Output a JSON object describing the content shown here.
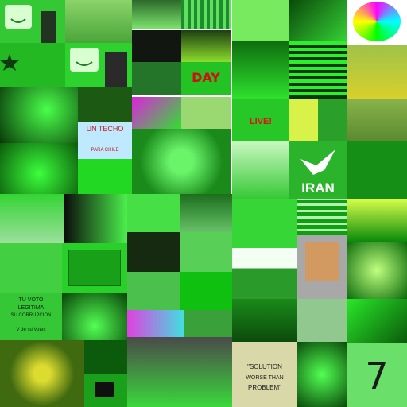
{
  "mosaic": {
    "tiles": [
      {
        "id": "t01",
        "color": "#2ecc40"
      },
      {
        "id": "t02",
        "color": "#3fd23a"
      },
      {
        "id": "t03",
        "color": "#1e7a12"
      },
      {
        "id": "t04",
        "color": "#27a81a"
      },
      {
        "id": "t05",
        "color": "#6ef25b"
      },
      {
        "id": "t06",
        "color": "#0b5a0b"
      },
      {
        "id": "t07",
        "color": "#a36cf7"
      },
      {
        "id": "t08",
        "color": "#1b8f2b"
      },
      {
        "id": "t09",
        "color": "#22c325"
      },
      {
        "id": "t10",
        "color": "#111a11"
      },
      {
        "id": "t11",
        "color": "#2b8d1a"
      },
      {
        "id": "t12",
        "color": "#0e5b0e"
      },
      {
        "id": "t13",
        "color": "#17c21a"
      },
      {
        "id": "t14",
        "color": "#05e005"
      },
      {
        "id": "t15",
        "color": "#7ab82b"
      },
      {
        "id": "t16",
        "color": "#08420d"
      },
      {
        "id": "t17",
        "color": "#187d17"
      },
      {
        "id": "t18",
        "color": "#52d65a"
      },
      {
        "id": "t19",
        "color": "#36b21d"
      },
      {
        "id": "t20",
        "color": "#2bdc2b"
      },
      {
        "id": "t21",
        "color": "#e53a3a"
      },
      {
        "id": "t22",
        "color": "#8ae83e"
      },
      {
        "id": "t23",
        "color": "#4fa22a"
      },
      {
        "id": "t24",
        "color": "#75c01a"
      },
      {
        "id": "t25",
        "color": "#0a7a0a"
      },
      {
        "id": "t26",
        "color": "#c3ffc3"
      },
      {
        "id": "t27",
        "color": "#1c9d1c"
      },
      {
        "id": "t28",
        "color": "#57c43a"
      },
      {
        "id": "t29",
        "color": "#18b718"
      },
      {
        "id": "t30",
        "color": "#0e3a0e"
      },
      {
        "id": "t31",
        "color": "#3ad23a"
      },
      {
        "id": "t32",
        "color": "#56a04c"
      },
      {
        "id": "t33",
        "color": "#6ed92e"
      },
      {
        "id": "t34",
        "color": "#3ec241"
      },
      {
        "id": "t35",
        "color": "#3b9f24"
      },
      {
        "id": "t36",
        "color": "#8bf0d0"
      },
      {
        "id": "t37",
        "color": "#20b020"
      },
      {
        "id": "t38",
        "color": "#1a8f2d"
      },
      {
        "id": "t39",
        "color": "#3ad43a"
      },
      {
        "id": "t40",
        "color": "#116611"
      },
      {
        "id": "t41",
        "color": "#39ce1f"
      },
      {
        "id": "t42",
        "color": "#62e040"
      },
      {
        "id": "t43",
        "color": "#3cd43c"
      },
      {
        "id": "t44",
        "color": "#1e9f1e"
      },
      {
        "id": "t45",
        "color": "#50e050"
      },
      {
        "id": "t46",
        "color": "#27a520"
      },
      {
        "id": "t47",
        "color": "#64bc3c"
      },
      {
        "id": "t48",
        "color": "#1ea01e"
      },
      {
        "id": "t49",
        "color": "#46c844"
      },
      {
        "id": "t50",
        "color": "#1a7a1a"
      },
      {
        "id": "t51",
        "color": "#61c04a"
      },
      {
        "id": "t52",
        "color": "#0f7f2f"
      },
      {
        "id": "t53",
        "color": "#d1d1a0"
      },
      {
        "id": "t54",
        "color": "#228022"
      },
      {
        "id": "t55",
        "color": "#168c16"
      },
      {
        "id": "t56",
        "color": "#3ab33a"
      },
      {
        "id": "t57",
        "color": "#42c042"
      },
      {
        "id": "t58",
        "color": "#1c6e1c"
      },
      {
        "id": "t59",
        "color": "#4caf4c"
      },
      {
        "id": "t60",
        "color": "#82e04a"
      },
      {
        "id": "t61",
        "color": "#1aa31a"
      },
      {
        "id": "t62",
        "color": "#2b7a2b"
      },
      {
        "id": "t63",
        "color": "#59d659"
      },
      {
        "id": "t64",
        "color": "#35a235"
      },
      {
        "id": "t65",
        "color": "#43c83a"
      },
      {
        "id": "t66",
        "color": "#2d8c2d"
      },
      {
        "id": "t67",
        "color": "#5fd05f"
      }
    ],
    "texts": {
      "day": "DAY",
      "live": "LIVE!",
      "un_techo_1": "UN TECHO",
      "un_techo_2": "PARA CHILE",
      "iran": "IRAN",
      "tu_voto_1": "TU VOTO",
      "tu_voto_2": "LEGITIMA",
      "tu_voto_3": "SU CORRUPCIÓN",
      "tu_voto_4": "V de su Votes",
      "solution_1": "\"SOLUTION",
      "solution_2": "WORSE THAN",
      "solution_3": "PROBLEM\"",
      "seven": "7"
    }
  }
}
